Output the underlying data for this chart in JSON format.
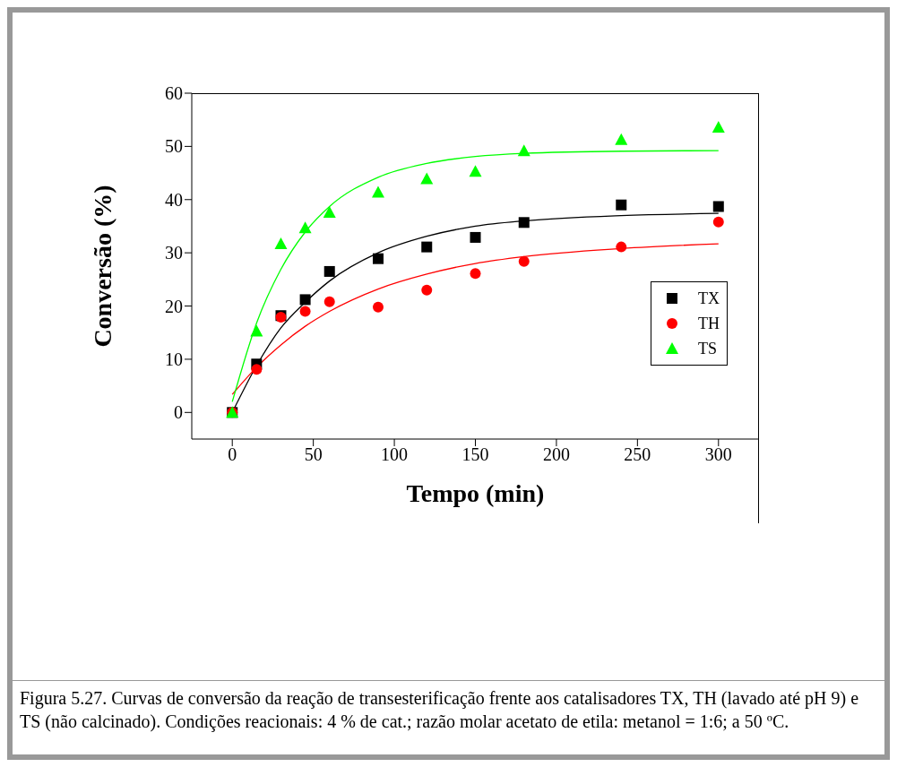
{
  "chart_data": {
    "type": "scatter",
    "xlabel": "Tempo (min)",
    "ylabel": "Conversão (%)",
    "xlim": [
      -25,
      325
    ],
    "xticks": [
      0,
      50,
      100,
      150,
      200,
      250,
      300
    ],
    "ylim": [
      -5,
      60
    ],
    "yticks": [
      0,
      10,
      20,
      30,
      40,
      50,
      60
    ],
    "legend": "right",
    "x": [
      0,
      15,
      30,
      45,
      60,
      90,
      120,
      150,
      180,
      240,
      300
    ],
    "series": [
      {
        "name": "TX",
        "color": "#000000",
        "marker": "square",
        "values": [
          0,
          9.1,
          18.2,
          21.2,
          26.5,
          28.9,
          31.1,
          32.9,
          35.7,
          39.0,
          38.7
        ]
      },
      {
        "name": "TH",
        "color": "#ff0000",
        "marker": "circle",
        "values": [
          0,
          8.1,
          17.9,
          19.0,
          20.8,
          19.8,
          23.0,
          26.1,
          28.4,
          31.1,
          35.8
        ]
      },
      {
        "name": "TS",
        "color": "#00ff00",
        "marker": "triangle",
        "values": [
          0,
          15.3,
          31.7,
          34.7,
          37.6,
          41.4,
          43.9,
          45.3,
          49.2,
          51.3,
          53.6
        ]
      },
      {
        "type": "line",
        "color": "#000000",
        "marker": "none",
        "x": [
          0,
          15,
          30,
          45,
          60,
          90,
          120,
          150,
          180,
          240,
          300
        ],
        "values": [
          0,
          8.8,
          15.9,
          20.7,
          24.7,
          30.0,
          33.1,
          35.0,
          36.0,
          37.0,
          37.4
        ]
      },
      {
        "type": "line",
        "color": "#ff0000",
        "marker": "none",
        "x": [
          0,
          15,
          30,
          45,
          60,
          90,
          120,
          150,
          180,
          240,
          300
        ],
        "values": [
          3.4,
          8.5,
          12.7,
          16.2,
          19.0,
          23.2,
          26.0,
          28.0,
          29.3,
          30.8,
          31.7
        ]
      },
      {
        "type": "line",
        "color": "#00ff00",
        "marker": "none",
        "x": [
          0,
          15,
          30,
          45,
          60,
          90,
          120,
          150,
          180,
          240,
          300
        ],
        "values": [
          2,
          16.8,
          26.9,
          33.9,
          38.7,
          44.2,
          46.8,
          48.1,
          48.7,
          49.1,
          49.2
        ]
      }
    ],
    "annotations": [
      "Figura 5.27. Curvas de conversão da reação de transesterificação frente aos catalisadores TX, TH (lavado até pH 9) e TS (não calcinado). Condições reacionais: 4 % de cat.; razão molar acetato de etila: metanol = 1:6; a 50 ºC."
    ]
  }
}
